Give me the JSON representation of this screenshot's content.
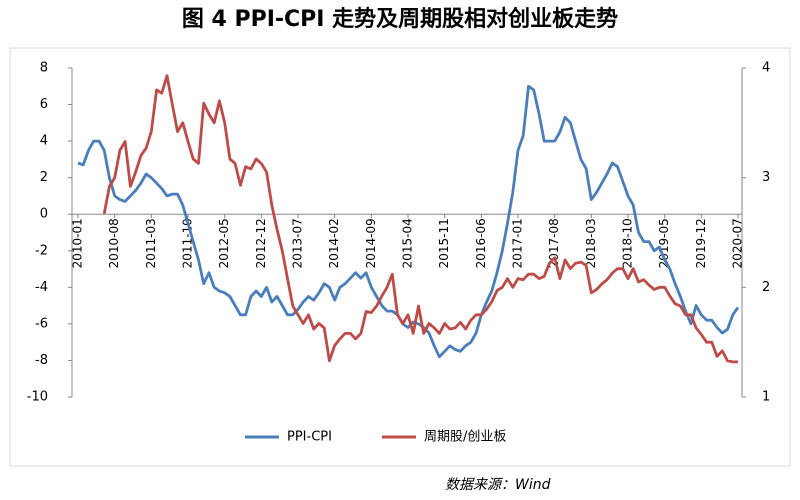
{
  "chart_data": {
    "type": "line",
    "title": "图 4 PPI-CPI 走势及周期股相对创业板走势",
    "source": "数据来源：Wind",
    "categories": [
      "2010-01",
      null,
      null,
      null,
      null,
      null,
      null,
      "2010-08",
      null,
      null,
      null,
      null,
      null,
      null,
      "2011-03",
      null,
      null,
      null,
      null,
      null,
      null,
      "2011-10",
      null,
      null,
      null,
      null,
      null,
      null,
      "2012-05",
      null,
      null,
      null,
      null,
      null,
      null,
      "2012-12",
      null,
      null,
      null,
      null,
      null,
      null,
      "2013-07",
      null,
      null,
      null,
      null,
      null,
      null,
      "2014-02",
      null,
      null,
      null,
      null,
      null,
      null,
      "2014-09",
      null,
      null,
      null,
      null,
      null,
      null,
      "2015-04",
      null,
      null,
      null,
      null,
      null,
      null,
      "2015-11",
      null,
      null,
      null,
      null,
      null,
      null,
      "2016-06",
      null,
      null,
      null,
      null,
      null,
      null,
      "2017-01",
      null,
      null,
      null,
      null,
      null,
      null,
      "2017-08",
      null,
      null,
      null,
      null,
      null,
      null,
      "2018-03",
      null,
      null,
      null,
      null,
      null,
      null,
      "2018-10",
      null,
      null,
      null,
      null,
      null,
      null,
      "2019-05",
      null,
      null,
      null,
      null,
      null,
      null,
      "2019-12",
      null,
      null,
      null,
      null,
      null,
      null,
      "2020-07"
    ],
    "series": [
      {
        "name": "PPI-CPI",
        "color": "#4a7ebb",
        "values": [
          2.8,
          2.7,
          3.5,
          4.0,
          4.0,
          3.5,
          2.0,
          1.0,
          0.8,
          0.7,
          1.0,
          1.3,
          1.7,
          2.2,
          2.0,
          1.7,
          1.4,
          1.0,
          1.1,
          1.1,
          0.5,
          -0.5,
          -1.5,
          -2.5,
          -3.8,
          -3.2,
          -4.0,
          -4.2,
          -4.3,
          -4.5,
          -5.0,
          -5.5,
          -5.5,
          -4.5,
          -4.2,
          -4.5,
          -4.0,
          -4.8,
          -4.5,
          -5.0,
          -5.5,
          -5.5,
          -5.2,
          -4.8,
          -4.5,
          -4.7,
          -4.3,
          -3.8,
          -4.0,
          -4.7,
          -4.0,
          -3.8,
          -3.5,
          -3.2,
          -3.5,
          -3.2,
          -4.0,
          -4.5,
          -5.0,
          -5.3,
          -5.3,
          -5.5,
          -6.0,
          -6.2,
          -5.9,
          -6.0,
          -6.2,
          -6.5,
          -7.2,
          -7.8,
          -7.5,
          -7.2,
          -7.4,
          -7.5,
          -7.2,
          -7.0,
          -6.5,
          -5.5,
          -4.8,
          -4.2,
          -3.2,
          -2.0,
          -0.5,
          1.2,
          3.5,
          4.3,
          7.0,
          6.8,
          5.5,
          4.0,
          4.0,
          4.0,
          4.5,
          5.3,
          5.0,
          4.0,
          3.0,
          2.5,
          0.8,
          1.2,
          1.7,
          2.2,
          2.8,
          2.6,
          1.8,
          1.0,
          0.5,
          -1.0,
          -1.5,
          -1.5,
          -2.0,
          -1.8,
          -2.5,
          -3.0,
          -3.8,
          -4.5,
          -5.3,
          -6.0,
          -5.0,
          -5.5,
          -5.8,
          -5.8,
          -6.2,
          -6.5,
          -6.3,
          -5.5,
          -5.1
        ]
      },
      {
        "name": "周期股/创业板",
        "color": "#be4b48",
        "axis": "y2",
        "values": [
          null,
          null,
          null,
          null,
          null,
          2.67,
          2.92,
          3.0,
          3.25,
          3.33,
          2.92,
          3.05,
          3.2,
          3.27,
          3.42,
          3.8,
          3.77,
          3.93,
          3.67,
          3.42,
          3.5,
          3.33,
          3.17,
          3.13,
          3.68,
          3.58,
          3.5,
          3.7,
          3.5,
          3.17,
          3.13,
          2.93,
          3.1,
          3.08,
          3.17,
          3.13,
          3.05,
          2.75,
          2.53,
          2.33,
          2.08,
          1.83,
          1.75,
          1.67,
          1.75,
          1.62,
          1.67,
          1.63,
          1.33,
          1.47,
          1.53,
          1.58,
          1.58,
          1.53,
          1.58,
          1.78,
          1.77,
          1.83,
          1.92,
          2.0,
          2.12,
          1.75,
          1.67,
          1.75,
          1.58,
          1.83,
          1.58,
          1.67,
          1.63,
          1.58,
          1.67,
          1.62,
          1.63,
          1.68,
          1.62,
          1.7,
          1.75,
          1.75,
          1.8,
          1.87,
          1.97,
          2.0,
          2.08,
          2.0,
          2.08,
          2.07,
          2.12,
          2.12,
          2.08,
          2.1,
          2.22,
          2.27,
          2.08,
          2.25,
          2.17,
          2.22,
          2.23,
          2.2,
          1.95,
          1.98,
          2.03,
          2.07,
          2.13,
          2.17,
          2.17,
          2.08,
          2.17,
          2.05,
          2.07,
          2.02,
          1.98,
          2.0,
          2.0,
          1.92,
          1.85,
          1.83,
          1.75,
          1.75,
          1.63,
          1.57,
          1.5,
          1.5,
          1.37,
          1.42,
          1.33,
          1.32,
          1.32
        ]
      }
    ],
    "ylim": [
      -10,
      8
    ],
    "yticks": [
      -10,
      -8,
      -6,
      -4,
      -2,
      0,
      2,
      4,
      6,
      8
    ],
    "y2lim": [
      1,
      4
    ],
    "y2ticks": [
      1,
      2,
      3,
      4
    ],
    "legend": "bottom"
  }
}
